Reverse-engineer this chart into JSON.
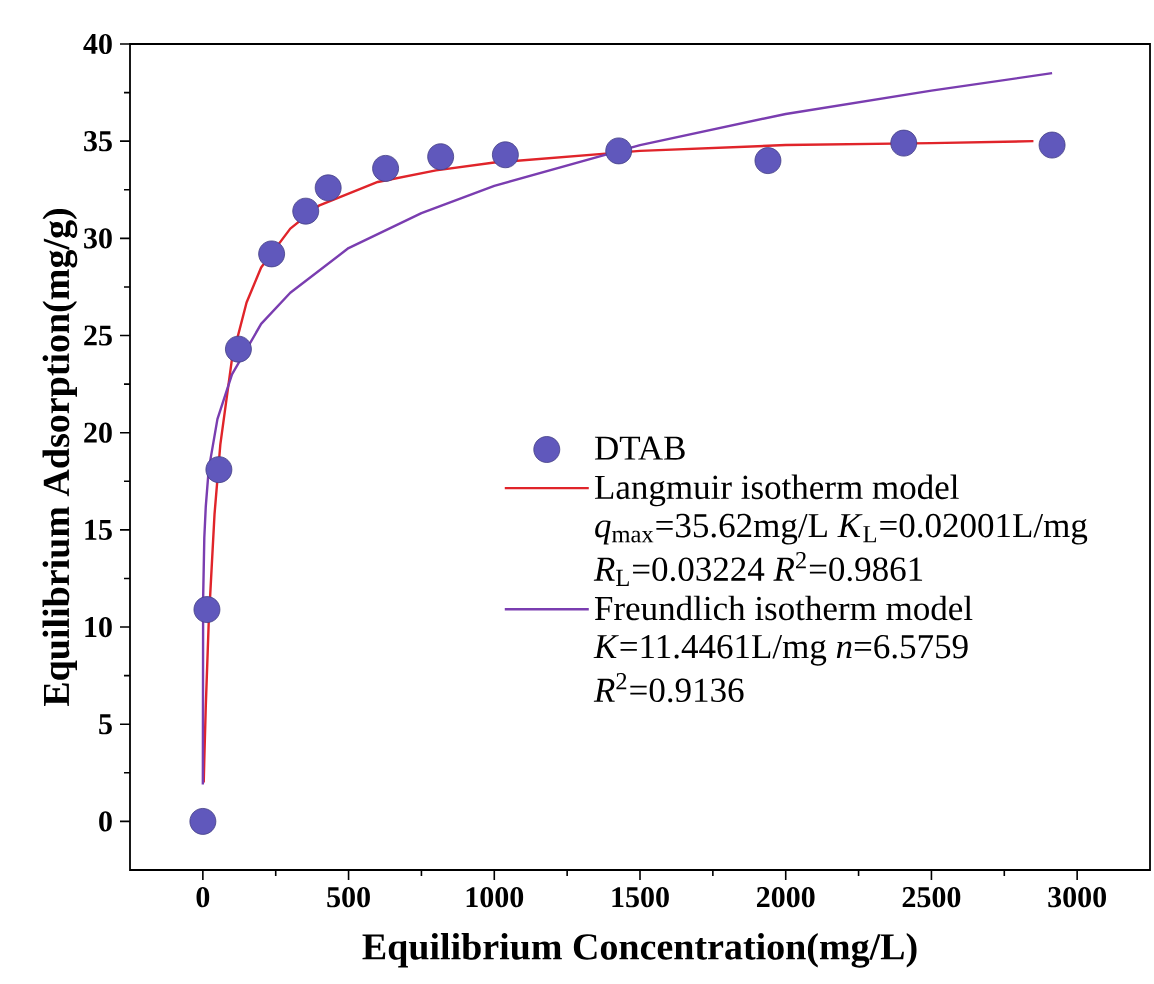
{
  "chart_data": {
    "type": "scatter",
    "xlabel": "Equilibrium Concentration(mg/L)",
    "ylabel": "Equilibrium Adsorption(mg/g)",
    "xlim": [
      -250,
      3250
    ],
    "xticks": [
      0,
      500,
      1000,
      1500,
      2000,
      2500,
      3000
    ],
    "ylim": [
      -2.5,
      40
    ],
    "yticks": [
      0,
      5,
      10,
      15,
      20,
      25,
      30,
      35,
      40
    ],
    "legend": "right",
    "grid": false,
    "series": [
      {
        "name": "DTAB",
        "marker": "circle",
        "color": "#6058bc",
        "x": [
          0,
          14,
          55,
          122,
          236,
          353,
          430,
          627,
          816,
          1038,
          1427,
          1939,
          2405,
          2914
        ],
        "values": [
          0,
          10.9,
          18.1,
          24.3,
          29.2,
          31.4,
          32.6,
          33.6,
          34.2,
          34.3,
          34.5,
          34.0,
          34.9,
          34.8
        ]
      },
      {
        "name": "Langmuir isotherm model",
        "type": "line",
        "marker": "none",
        "line_style": "solid",
        "color": "#e0242a",
        "x": [
          3,
          5,
          10,
          20,
          40,
          60,
          100,
          150,
          200,
          300,
          400,
          600,
          800,
          1000,
          1500,
          2000,
          2500,
          2850
        ],
        "values": [
          2.0,
          3.2,
          5.9,
          10.2,
          15.8,
          19.4,
          23.8,
          26.7,
          28.5,
          30.5,
          31.7,
          32.9,
          33.5,
          33.9,
          34.5,
          34.8,
          34.9,
          35.0
        ]
      },
      {
        "name": "Freundlich isotherm model",
        "type": "line",
        "marker": "none",
        "line_style": "solid",
        "color": "#7a3db0",
        "x": [
          0,
          1,
          5,
          10,
          20,
          50,
          100,
          200,
          300,
          500,
          750,
          1000,
          1500,
          2000,
          2500,
          2914
        ],
        "values": [
          1.9,
          11.5,
          14.6,
          16.2,
          18.1,
          20.7,
          23.0,
          25.6,
          27.2,
          29.5,
          31.3,
          32.7,
          34.8,
          36.4,
          37.6,
          38.5
        ]
      }
    ],
    "annotations": [
      "*q*$_{max}$=35.62mg/L  *K*$_{L}$=0.02001L/mg",
      "*R*$_{L}$=0.03224  *R*$^{2}$=0.9861",
      "*K*=11.4461L/mg  *n*=6.5759",
      "*R*$^{2}$=0.9136"
    ]
  }
}
